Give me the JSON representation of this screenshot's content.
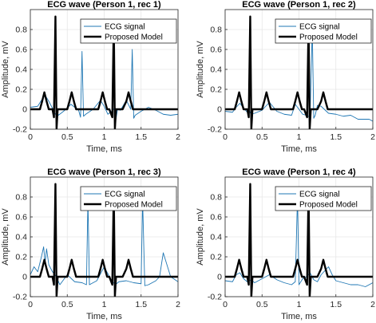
{
  "colors": {
    "ecg": "#1f77b4",
    "model": "#000000",
    "grid": "#e6e6e6",
    "axis": "#262626"
  },
  "chart_data": [
    {
      "type": "line",
      "title": "ECG wave (Person 1, rec 1)",
      "xlabel": "Time, ms",
      "ylabel": "Amplitude, mV",
      "xlim": [
        0,
        2
      ],
      "ylim": [
        -0.2,
        1.0
      ],
      "xticks": [
        "0",
        "0.5",
        "1",
        "1.5",
        "2"
      ],
      "yticks": [
        "-0.2",
        "0",
        "0.2",
        "0.4",
        "0.6",
        "0.8"
      ],
      "grid": true,
      "legend": {
        "placement": "top-right",
        "entries": [
          "ECG signal",
          "Proposed Model"
        ]
      },
      "series": [
        {
          "name": "ECG signal",
          "x": [
            0,
            0.1,
            0.15,
            0.2,
            0.25,
            0.3,
            0.32,
            0.34,
            0.36,
            0.38,
            0.45,
            0.55,
            0.6,
            0.65,
            0.68,
            0.7,
            0.72,
            0.75,
            0.85,
            0.95,
            1.0,
            1.05,
            1.1,
            1.14,
            1.16,
            1.18,
            1.22,
            1.3,
            1.36,
            1.38,
            1.4,
            1.42,
            1.5,
            1.6,
            1.7,
            1.8,
            1.9,
            2.0
          ],
          "y": [
            0.02,
            0.03,
            0.09,
            0.14,
            0.08,
            0.01,
            -0.03,
            -0.05,
            -0.02,
            -0.06,
            -0.02,
            0.05,
            0.02,
            0.0,
            -0.08,
            0.58,
            -0.07,
            -0.05,
            0.0,
            0.09,
            0.03,
            -0.05,
            -0.02,
            0.01,
            -0.1,
            0.0,
            -0.01,
            0.09,
            0.0,
            0.6,
            -0.09,
            -0.06,
            -0.02,
            0.02,
            -0.01,
            -0.05,
            -0.06,
            -0.05
          ]
        },
        {
          "name": "Proposed Model",
          "x": [
            0,
            0.13,
            0.16,
            0.19,
            0.22,
            0.25,
            0.3,
            0.32,
            0.34,
            0.355,
            0.37,
            0.39,
            0.5,
            0.53,
            0.56,
            0.59,
            0.62,
            0.65,
            0.92,
            0.95,
            0.98,
            1.01,
            1.04,
            1.07,
            1.11,
            1.13,
            1.145,
            1.16,
            1.18,
            1.25,
            1.3,
            1.33,
            1.36,
            1.39,
            1.42,
            1.47,
            2.0
          ],
          "y": [
            0,
            0.0,
            0.08,
            0.17,
            0.08,
            0.0,
            0.0,
            -0.08,
            0.93,
            -0.2,
            0.0,
            0.0,
            0.0,
            0.08,
            0.17,
            0.08,
            0.0,
            0.0,
            0.0,
            0.08,
            0.17,
            0.08,
            0.0,
            0.0,
            -0.08,
            0.87,
            -0.2,
            0.0,
            0.0,
            0.0,
            0.08,
            0.17,
            0.08,
            0.0,
            0.0,
            0.0,
            0.0
          ]
        }
      ]
    },
    {
      "type": "line",
      "title": "ECG wave (Person 1, rec 2)",
      "xlabel": "Time, ms",
      "ylabel": "Amplitude, mV",
      "xlim": [
        0,
        2
      ],
      "ylim": [
        -0.2,
        1.0
      ],
      "xticks": [
        "0",
        "0.5",
        "1",
        "1.5",
        "2"
      ],
      "yticks": [
        "-0.2",
        "0",
        "0.2",
        "0.4",
        "0.6",
        "0.8"
      ],
      "grid": true,
      "legend": {
        "placement": "top-right",
        "entries": [
          "ECG signal",
          "Proposed Model"
        ]
      },
      "series": [
        {
          "name": "ECG signal",
          "x": [
            0,
            0.1,
            0.15,
            0.2,
            0.25,
            0.3,
            0.33,
            0.35,
            0.4,
            0.5,
            0.6,
            0.7,
            0.8,
            0.9,
            0.95,
            1.0,
            1.05,
            1.1,
            1.15,
            1.18,
            1.2,
            1.22,
            1.25,
            1.3,
            1.4,
            1.5,
            1.6,
            1.7,
            1.8,
            1.9,
            1.95,
            2.0
          ],
          "y": [
            -0.02,
            -0.03,
            0.02,
            0.06,
            0.01,
            -0.03,
            -0.02,
            -0.05,
            -0.04,
            -0.01,
            0.07,
            -0.02,
            -0.05,
            -0.06,
            0.05,
            0.0,
            -0.05,
            -0.06,
            -0.08,
            0.82,
            -0.09,
            -0.06,
            0.04,
            0.03,
            -0.04,
            -0.05,
            -0.07,
            -0.06,
            -0.1,
            -0.1,
            -0.1,
            -0.12
          ]
        },
        {
          "name": "Proposed Model",
          "x": [
            0,
            0.13,
            0.16,
            0.19,
            0.22,
            0.25,
            0.3,
            0.32,
            0.34,
            0.355,
            0.37,
            0.39,
            0.5,
            0.53,
            0.56,
            0.59,
            0.62,
            0.65,
            0.92,
            0.95,
            0.98,
            1.01,
            1.04,
            1.07,
            1.11,
            1.13,
            1.145,
            1.16,
            1.18,
            1.25,
            1.3,
            1.33,
            1.36,
            1.39,
            1.42,
            1.47,
            2.0
          ],
          "y": [
            0,
            0.0,
            0.08,
            0.17,
            0.08,
            0.0,
            0.0,
            -0.08,
            0.93,
            -0.2,
            0.0,
            0.0,
            0.0,
            0.08,
            0.17,
            0.08,
            0.0,
            0.0,
            0.0,
            0.08,
            0.17,
            0.08,
            0.0,
            0.0,
            -0.08,
            0.87,
            -0.2,
            0.0,
            0.0,
            0.0,
            0.08,
            0.17,
            0.08,
            0.0,
            0.0,
            0.0,
            0.0
          ]
        }
      ]
    },
    {
      "type": "line",
      "title": "ECG wave (Person 1, rec 3)",
      "xlabel": "Time, ms",
      "ylabel": "Amplitude, mV",
      "xlim": [
        0,
        2
      ],
      "ylim": [
        -0.2,
        1.0
      ],
      "xticks": [
        "0",
        "0.5",
        "1",
        "1.5",
        "2"
      ],
      "yticks": [
        "-0.2",
        "0",
        "0.2",
        "0.4",
        "0.6",
        "0.8"
      ],
      "grid": true,
      "legend": {
        "placement": "top-right",
        "entries": [
          "ECG signal",
          "Proposed Model"
        ]
      },
      "series": [
        {
          "name": "ECG signal",
          "x": [
            0,
            0.05,
            0.1,
            0.15,
            0.18,
            0.2,
            0.22,
            0.25,
            0.3,
            0.35,
            0.4,
            0.5,
            0.6,
            0.7,
            0.76,
            0.78,
            0.8,
            0.9,
            1.0,
            1.1,
            1.15,
            1.2,
            1.3,
            1.4,
            1.5,
            1.52,
            1.55,
            1.6,
            1.7,
            1.75,
            1.8,
            1.9,
            2.0
          ],
          "y": [
            0.02,
            0.1,
            0.05,
            0.2,
            0.3,
            0.14,
            0.28,
            0.12,
            0.05,
            0.0,
            -0.08,
            0.02,
            -0.05,
            -0.06,
            -0.08,
            0.78,
            -0.08,
            -0.04,
            0.1,
            -0.04,
            -0.08,
            -0.05,
            -0.04,
            -0.06,
            -0.07,
            0.78,
            -0.09,
            -0.08,
            -0.04,
            0.0,
            0.24,
            0.0,
            -0.05
          ]
        },
        {
          "name": "Proposed Model",
          "x": [
            0,
            0.13,
            0.16,
            0.19,
            0.22,
            0.25,
            0.3,
            0.32,
            0.34,
            0.355,
            0.37,
            0.39,
            0.5,
            0.53,
            0.56,
            0.59,
            0.62,
            0.65,
            0.92,
            0.95,
            0.98,
            1.01,
            1.04,
            1.07,
            1.11,
            1.13,
            1.145,
            1.16,
            1.18,
            1.25,
            1.3,
            1.33,
            1.36,
            1.39,
            1.42,
            1.47,
            2.0
          ],
          "y": [
            0,
            0.0,
            0.08,
            0.17,
            0.08,
            0.0,
            0.0,
            -0.08,
            0.93,
            -0.2,
            0.0,
            0.0,
            0.0,
            0.08,
            0.17,
            0.08,
            0.0,
            0.0,
            0.0,
            0.08,
            0.17,
            0.08,
            0.0,
            0.0,
            -0.08,
            0.87,
            -0.2,
            0.0,
            0.0,
            0.0,
            0.08,
            0.17,
            0.08,
            0.0,
            0.0,
            0.0,
            0.0
          ]
        }
      ]
    },
    {
      "type": "line",
      "title": "ECG wave (Person 1, rec 4)",
      "xlabel": "Time, ms",
      "ylabel": "Amplitude, mV",
      "xlim": [
        0,
        2
      ],
      "ylim": [
        -0.2,
        1.0
      ],
      "xticks": [
        "0",
        "0.5",
        "1",
        "1.5",
        "2"
      ],
      "yticks": [
        "-0.2",
        "0",
        "0.2",
        "0.4",
        "0.6",
        "0.8"
      ],
      "grid": true,
      "legend": {
        "placement": "top-right",
        "entries": [
          "ECG signal",
          "Proposed Model"
        ]
      },
      "series": [
        {
          "name": "ECG signal",
          "x": [
            0,
            0.1,
            0.15,
            0.2,
            0.25,
            0.3,
            0.35,
            0.4,
            0.5,
            0.6,
            0.7,
            0.8,
            0.9,
            0.95,
            0.98,
            1.0,
            1.05,
            1.1,
            1.15,
            1.2,
            1.25,
            1.3,
            1.4,
            1.45,
            1.5,
            1.6,
            1.7,
            1.8,
            1.9,
            2.0
          ],
          "y": [
            -0.04,
            -0.05,
            0.02,
            0.04,
            -0.02,
            -0.05,
            -0.03,
            -0.06,
            -0.02,
            0.02,
            -0.03,
            -0.06,
            -0.08,
            -0.05,
            0.8,
            -0.08,
            -0.02,
            0.0,
            0.04,
            -0.03,
            -0.05,
            0.02,
            0.1,
            0.02,
            -0.04,
            -0.06,
            -0.08,
            -0.08,
            -0.1,
            -0.06
          ]
        },
        {
          "name": "Proposed Model",
          "x": [
            0,
            0.13,
            0.16,
            0.19,
            0.22,
            0.25,
            0.3,
            0.32,
            0.34,
            0.355,
            0.37,
            0.39,
            0.5,
            0.53,
            0.56,
            0.59,
            0.62,
            0.65,
            0.92,
            0.95,
            0.98,
            1.01,
            1.04,
            1.07,
            1.11,
            1.13,
            1.145,
            1.16,
            1.18,
            1.25,
            1.3,
            1.33,
            1.36,
            1.39,
            1.42,
            1.47,
            2.0
          ],
          "y": [
            0,
            0.0,
            0.08,
            0.17,
            0.08,
            0.0,
            0.0,
            -0.08,
            0.93,
            -0.2,
            0.0,
            0.0,
            0.0,
            0.08,
            0.17,
            0.08,
            0.0,
            0.0,
            0.0,
            0.08,
            0.17,
            0.08,
            0.0,
            0.0,
            -0.08,
            0.87,
            -0.2,
            0.0,
            0.0,
            0.0,
            0.08,
            0.17,
            0.08,
            0.0,
            0.0,
            0.0,
            0.0
          ]
        }
      ]
    }
  ]
}
